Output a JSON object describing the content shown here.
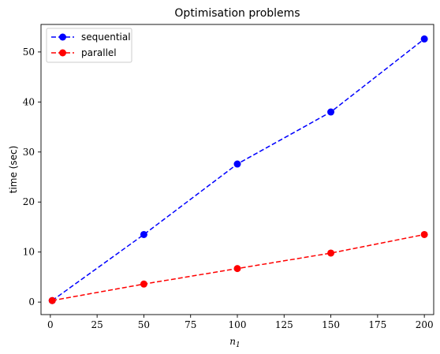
{
  "chart_data": {
    "type": "line",
    "title": "Optimisation problems",
    "xlabel_main": "n",
    "xlabel_sub": "1",
    "ylabel": "time (sec)",
    "xlim": [
      -5,
      205
    ],
    "ylim": [
      -2.5,
      55.5
    ],
    "xticks": [
      0,
      25,
      50,
      75,
      100,
      125,
      150,
      175,
      200
    ],
    "yticks": [
      0,
      10,
      20,
      30,
      40,
      50
    ],
    "grid": false,
    "legend_position": "top-left",
    "series": [
      {
        "name": "sequential",
        "color": "#0000ff",
        "x": [
          1,
          50,
          100,
          150,
          200
        ],
        "y": [
          0.3,
          13.5,
          27.6,
          38.0,
          52.6
        ]
      },
      {
        "name": "parallel",
        "color": "#ff0000",
        "x": [
          1,
          50,
          100,
          150,
          200
        ],
        "y": [
          0.3,
          3.6,
          6.7,
          9.8,
          13.5
        ]
      }
    ]
  }
}
